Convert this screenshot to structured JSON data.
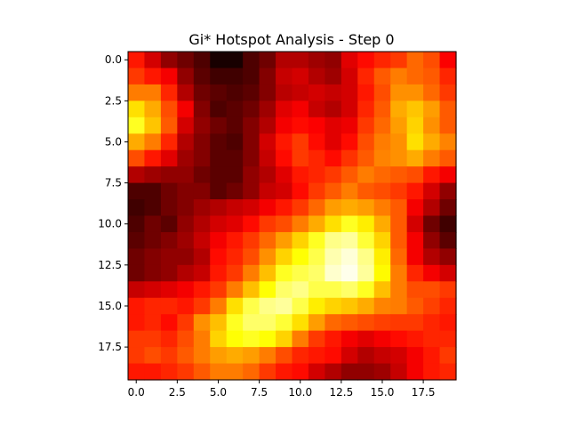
{
  "chart_data": {
    "type": "heatmap",
    "title": "Gi* Hotspot Analysis - Step 0",
    "xlabel": "",
    "ylabel": "",
    "colormap": "hot",
    "value_range": [
      0,
      1
    ],
    "grid": false,
    "legend": "none",
    "xlim": [
      -0.5,
      19.5
    ],
    "ylim": [
      19.5,
      -0.5
    ],
    "x_ticks": [
      0,
      2.5,
      5,
      7.5,
      10,
      12.5,
      15,
      17.5
    ],
    "x_tick_labels": [
      "0.0",
      "2.5",
      "5.0",
      "7.5",
      "10.0",
      "12.5",
      "15.0",
      "17.5"
    ],
    "y_ticks": [
      0,
      2.5,
      5,
      7.5,
      10,
      12.5,
      15,
      17.5
    ],
    "y_tick_labels": [
      "0.0",
      "2.5",
      "5.0",
      "7.5",
      "10.0",
      "12.5",
      "15.0",
      "17.5"
    ],
    "rows": 20,
    "cols": 20,
    "values": [
      [
        0.4,
        0.3,
        0.2,
        0.15,
        0.1,
        0.02,
        0.02,
        0.1,
        0.15,
        0.25,
        0.25,
        0.22,
        0.2,
        0.32,
        0.38,
        0.42,
        0.45,
        0.52,
        0.48,
        0.36
      ],
      [
        0.45,
        0.4,
        0.35,
        0.2,
        0.12,
        0.08,
        0.08,
        0.1,
        0.18,
        0.28,
        0.3,
        0.25,
        0.22,
        0.3,
        0.42,
        0.5,
        0.55,
        0.52,
        0.5,
        0.42
      ],
      [
        0.55,
        0.55,
        0.42,
        0.25,
        0.15,
        0.12,
        0.1,
        0.12,
        0.18,
        0.26,
        0.28,
        0.3,
        0.28,
        0.3,
        0.4,
        0.48,
        0.58,
        0.58,
        0.52,
        0.45
      ],
      [
        0.7,
        0.62,
        0.48,
        0.35,
        0.18,
        0.1,
        0.12,
        0.15,
        0.22,
        0.32,
        0.35,
        0.28,
        0.25,
        0.3,
        0.42,
        0.5,
        0.62,
        0.66,
        0.6,
        0.5
      ],
      [
        0.78,
        0.66,
        0.5,
        0.3,
        0.2,
        0.15,
        0.12,
        0.18,
        0.25,
        0.35,
        0.38,
        0.36,
        0.32,
        0.34,
        0.45,
        0.52,
        0.6,
        0.68,
        0.58,
        0.5
      ],
      [
        0.62,
        0.55,
        0.42,
        0.25,
        0.18,
        0.12,
        0.1,
        0.18,
        0.3,
        0.4,
        0.45,
        0.38,
        0.32,
        0.38,
        0.48,
        0.55,
        0.58,
        0.7,
        0.62,
        0.56
      ],
      [
        0.48,
        0.4,
        0.32,
        0.22,
        0.18,
        0.12,
        0.12,
        0.18,
        0.28,
        0.38,
        0.45,
        0.42,
        0.38,
        0.44,
        0.5,
        0.56,
        0.58,
        0.62,
        0.55,
        0.5
      ],
      [
        0.25,
        0.22,
        0.2,
        0.2,
        0.15,
        0.12,
        0.12,
        0.2,
        0.25,
        0.32,
        0.4,
        0.42,
        0.45,
        0.5,
        0.55,
        0.52,
        0.5,
        0.48,
        0.4,
        0.35
      ],
      [
        0.1,
        0.1,
        0.15,
        0.18,
        0.18,
        0.12,
        0.15,
        0.2,
        0.28,
        0.3,
        0.38,
        0.45,
        0.5,
        0.55,
        0.5,
        0.48,
        0.45,
        0.4,
        0.3,
        0.2
      ],
      [
        0.08,
        0.1,
        0.15,
        0.18,
        0.22,
        0.25,
        0.28,
        0.3,
        0.35,
        0.4,
        0.45,
        0.52,
        0.6,
        0.62,
        0.6,
        0.55,
        0.5,
        0.35,
        0.25,
        0.15
      ],
      [
        0.1,
        0.15,
        0.12,
        0.2,
        0.25,
        0.3,
        0.32,
        0.38,
        0.45,
        0.48,
        0.55,
        0.62,
        0.7,
        0.78,
        0.72,
        0.62,
        0.5,
        0.3,
        0.15,
        0.08
      ],
      [
        0.12,
        0.15,
        0.18,
        0.22,
        0.28,
        0.35,
        0.4,
        0.45,
        0.52,
        0.6,
        0.68,
        0.78,
        0.88,
        0.9,
        0.8,
        0.68,
        0.5,
        0.35,
        0.2,
        0.12
      ],
      [
        0.15,
        0.18,
        0.2,
        0.2,
        0.25,
        0.38,
        0.42,
        0.48,
        0.58,
        0.68,
        0.75,
        0.82,
        0.92,
        0.96,
        0.88,
        0.72,
        0.52,
        0.35,
        0.25,
        0.2
      ],
      [
        0.15,
        0.18,
        0.2,
        0.25,
        0.28,
        0.4,
        0.45,
        0.55,
        0.65,
        0.78,
        0.82,
        0.85,
        0.95,
        0.98,
        0.9,
        0.74,
        0.55,
        0.42,
        0.35,
        0.3
      ],
      [
        0.28,
        0.3,
        0.32,
        0.35,
        0.4,
        0.45,
        0.55,
        0.65,
        0.75,
        0.85,
        0.88,
        0.82,
        0.82,
        0.85,
        0.78,
        0.65,
        0.55,
        0.48,
        0.48,
        0.45
      ],
      [
        0.4,
        0.42,
        0.42,
        0.4,
        0.45,
        0.55,
        0.7,
        0.82,
        0.88,
        0.9,
        0.82,
        0.72,
        0.68,
        0.66,
        0.62,
        0.56,
        0.55,
        0.5,
        0.46,
        0.42
      ],
      [
        0.4,
        0.42,
        0.38,
        0.45,
        0.58,
        0.65,
        0.78,
        0.85,
        0.85,
        0.8,
        0.7,
        0.6,
        0.52,
        0.5,
        0.48,
        0.46,
        0.45,
        0.45,
        0.42,
        0.4
      ],
      [
        0.45,
        0.45,
        0.42,
        0.48,
        0.55,
        0.68,
        0.75,
        0.78,
        0.75,
        0.68,
        0.55,
        0.45,
        0.4,
        0.35,
        0.32,
        0.35,
        0.38,
        0.4,
        0.42,
        0.42
      ],
      [
        0.45,
        0.48,
        0.45,
        0.5,
        0.55,
        0.6,
        0.62,
        0.6,
        0.55,
        0.48,
        0.42,
        0.4,
        0.38,
        0.3,
        0.25,
        0.28,
        0.3,
        0.35,
        0.4,
        0.45
      ],
      [
        0.4,
        0.4,
        0.42,
        0.45,
        0.5,
        0.55,
        0.55,
        0.52,
        0.45,
        0.4,
        0.38,
        0.3,
        0.25,
        0.2,
        0.2,
        0.22,
        0.28,
        0.35,
        0.4,
        0.42
      ]
    ]
  }
}
